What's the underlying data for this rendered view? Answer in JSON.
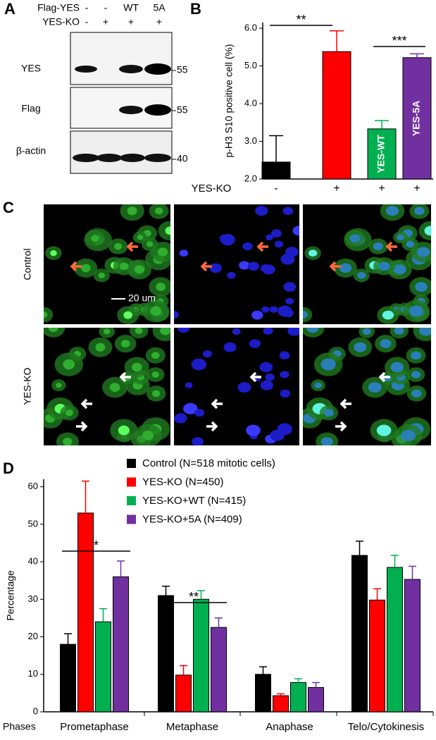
{
  "panel_labels": [
    "A",
    "B",
    "C",
    "D"
  ],
  "blot": {
    "header_rows": [
      {
        "label": "Flag-YES",
        "lanes": [
          "-",
          "-",
          "WT",
          "5A"
        ]
      },
      {
        "label": "YES-KO",
        "lanes": [
          "-",
          "+",
          "+",
          "+"
        ]
      }
    ],
    "rows": [
      {
        "label": "YES",
        "marker": "55"
      },
      {
        "label": "Flag",
        "marker": "55"
      },
      {
        "label": "β-actin",
        "marker": "40"
      }
    ]
  },
  "microscopy": {
    "rows": [
      "Control",
      "YES-KO"
    ],
    "scale_bar": "20 um"
  },
  "chart_data": [
    {
      "type": "bar",
      "ylabel": "p-H3 S10 positive cell (%)",
      "xlabel": "YES-KO",
      "categories": [
        "-",
        "+",
        "+",
        "+"
      ],
      "values": [
        2.45,
        5.38,
        3.33,
        5.22
      ],
      "errors": [
        0.7,
        0.55,
        0.22,
        0.1
      ],
      "colors": [
        "#000000",
        "#ff0000",
        "#00b050",
        "#7030a0"
      ],
      "bar_labels": [
        null,
        null,
        "YES-WT",
        "YES-5A"
      ],
      "ylim": [
        2,
        6.15
      ],
      "yticks": [
        {
          "value": 2,
          "label": "2.0"
        },
        {
          "value": 3,
          "label": "3.0"
        },
        {
          "value": 4,
          "label": "4.0"
        },
        {
          "value": 5,
          "label": "5.0"
        },
        {
          "value": 6,
          "label": "6.0"
        }
      ],
      "annotations": [
        "**",
        "***"
      ]
    },
    {
      "type": "bar",
      "ylabel": "Percentage",
      "xlabel": "Phases",
      "categories": [
        "Prometaphase",
        "Metaphase",
        "Anaphase",
        "Telo/Cytokinesis"
      ],
      "series": [
        {
          "name": "Control (N=518 mitotic cells)",
          "color": "#000000",
          "values": [
            18,
            31,
            10,
            41.7
          ],
          "errors": [
            2.8,
            2.5,
            2,
            3.8
          ]
        },
        {
          "name": "YES-KO (N=450)",
          "color": "#ff0000",
          "values": [
            53,
            9.8,
            4.3,
            29.8
          ],
          "errors": [
            8.5,
            2.5,
            0.5,
            3
          ]
        },
        {
          "name": "YES-KO+WT (N=415)",
          "color": "#00b050",
          "values": [
            24,
            30,
            7.8,
            38.5
          ],
          "errors": [
            3.5,
            2.3,
            1,
            3.2
          ]
        },
        {
          "name": "YES-KO+5A (N=409)",
          "color": "#7030a0",
          "values": [
            36,
            22.5,
            6.5,
            35.3
          ],
          "errors": [
            4.2,
            2.5,
            1.3,
            3.5
          ]
        }
      ],
      "ylim": [
        0,
        62
      ],
      "yticks": [
        0,
        10,
        20,
        30,
        40,
        50,
        60
      ],
      "annotations": [
        "*",
        "**"
      ]
    }
  ]
}
